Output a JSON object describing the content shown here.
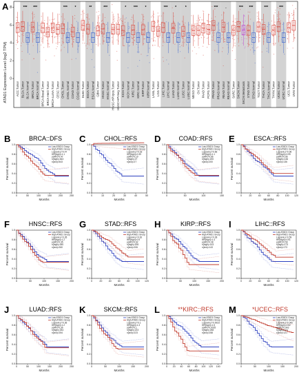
{
  "colors": {
    "tumor": "#d9534a",
    "normal": "#4a6fd0",
    "metastasis": "#c04ad0",
    "high": "#c0392b",
    "low": "#2b3fbf",
    "ci": "#cfa0a0",
    "shade": "#d3d3d3"
  },
  "panel_a": {
    "label": "A",
    "y_axis_label": "ATAD1 Expression Level (log2 TPM)",
    "y_ticks": [
      "0",
      "2",
      "4",
      "6",
      "8"
    ],
    "categories": [
      "ACC.Tumor",
      "BLCA.Tumor",
      "BLCA.Normal",
      "BRCA.Tumor",
      "BRCA.Normal",
      "BRCA-Basal.Tumor",
      "BRCA-Her2.Tumor",
      "BRCA-LumA.Tumor",
      "CESC.Tumor",
      "CHOL.Tumor",
      "CHOL.Normal",
      "COAD.Tumor",
      "COAD.Normal",
      "DLBC.Tumor",
      "ESCA.Tumor",
      "ESCA.Normal",
      "GBM.Tumor",
      "HNSC.Tumor",
      "HNSC.Normal",
      "HNSC-HPVpos.Tumor",
      "HNSC-HPVneg.Tumor",
      "KICH.Tumor",
      "KICH.Normal",
      "KIRC.Tumor",
      "KIRC.Normal",
      "KIRP.Tumor",
      "KIRP.Normal",
      "LAML.Tumor",
      "LGG.Tumor",
      "LIHC.Tumor",
      "LIHC.Normal",
      "LUAD.Tumor",
      "LUAD.Normal",
      "LUSC.Tumor",
      "LUSC.Normal",
      "MESO.Tumor",
      "OV.Tumor",
      "PAAD.Tumor",
      "PCPG.Tumor",
      "PRAD.Tumor",
      "PRAD.Normal",
      "READ.Tumor",
      "READ.Normal",
      "SARC.Tumor",
      "SKCM.Tumor",
      "SKCM.Metastasis",
      "STAD.Tumor",
      "STAD.Normal",
      "TGCT.Tumor",
      "THCA.Tumor",
      "THCA.Normal",
      "THYM.Tumor",
      "UCEC.Tumor",
      "UCEC.Normal",
      "UCS.Tumor",
      "UVM.Tumor"
    ],
    "shaded_pairs": [
      [
        1,
        2
      ],
      [
        3,
        4
      ],
      [
        9,
        10
      ],
      [
        11,
        12
      ],
      [
        14,
        15
      ],
      [
        17,
        18
      ],
      [
        21,
        22
      ],
      [
        23,
        24
      ],
      [
        25,
        26
      ],
      [
        29,
        30
      ],
      [
        31,
        32
      ],
      [
        33,
        34
      ],
      [
        39,
        40
      ],
      [
        41,
        42
      ],
      [
        44,
        45
      ],
      [
        46,
        47
      ],
      [
        49,
        50
      ],
      [
        52,
        53
      ]
    ],
    "significance": [
      {
        "index": 2,
        "label": "***"
      },
      {
        "index": 4,
        "label": "***"
      },
      {
        "index": 10,
        "label": "***"
      },
      {
        "index": 12,
        "label": "*"
      },
      {
        "index": 15,
        "label": "**"
      },
      {
        "index": 18,
        "label": "***"
      },
      {
        "index": 22,
        "label": "*"
      },
      {
        "index": 24,
        "label": "***"
      },
      {
        "index": 26,
        "label": "*"
      },
      {
        "index": 30,
        "label": "***"
      },
      {
        "index": 32,
        "label": "*"
      },
      {
        "index": 34,
        "label": "*"
      },
      {
        "index": 40,
        "label": "***"
      },
      {
        "index": 42,
        "label": "."
      },
      {
        "index": 45,
        "label": "***"
      },
      {
        "index": 47,
        "label": "***"
      },
      {
        "index": 50,
        "label": "***"
      },
      {
        "index": 53,
        "label": "***"
      }
    ]
  },
  "km_common": {
    "x_label": "Months",
    "y_label": "Percent survival",
    "y_ticks": [
      "0.0",
      "0.2",
      "0.4",
      "0.6",
      "0.8",
      "1.0"
    ],
    "legend_low": "Low ATAD1 Group",
    "legend_high": "High ATAD1 Group"
  },
  "km_panels": [
    {
      "label": "B",
      "title": "BRCA::DFS",
      "xmax": 250,
      "xticks": [
        "0",
        "50",
        "100",
        "150",
        "200",
        "250"
      ],
      "stats": [
        "Logrank p=0.47",
        "HR(high)=1.1",
        "p(HR)=0.47",
        "n(high)=543",
        "n(low)=543"
      ]
    },
    {
      "label": "C",
      "title": "CHOL::RFS",
      "xmax": 50,
      "xticks": [
        "0",
        "10",
        "20",
        "30",
        "40",
        "50"
      ],
      "stats": [
        "Logrank p=0.18",
        "HR(high)=0.39",
        "p(HR)=0.19",
        "n(high)=27",
        "n(low)=27"
      ]
    },
    {
      "label": "D",
      "title": "COAD::RFS",
      "xmax": 150,
      "xticks": [
        "0",
        "50",
        "100",
        "150"
      ],
      "stats": [
        "Logrank p=0.66",
        "HR(high)=1.1",
        "p(HR)=0.66",
        "n(high)=200",
        "n(low)=200"
      ]
    },
    {
      "label": "E",
      "title": "ESCA::RFS",
      "xmax": 120,
      "xticks": [
        "0",
        "20",
        "40",
        "60",
        "80",
        "100",
        "120"
      ],
      "stats": [
        "Logrank p=0.96",
        "HR(high)=0.99",
        "p(HR)=0.96",
        "n(high)=136",
        "n(low)=136"
      ]
    },
    {
      "label": "F",
      "title": "HNSC::RFS",
      "xmax": 200,
      "xticks": [
        "0",
        "50",
        "100",
        "150",
        "200"
      ],
      "stats": [
        "Logrank p=0.35",
        "HR(high)=1.2",
        "p(HR)=0.35",
        "n(high)=260",
        "n(low)=260"
      ]
    },
    {
      "label": "G",
      "title": "STAD::RFS",
      "xmax": 120,
      "xticks": [
        "0",
        "20",
        "40",
        "60",
        "80",
        "100",
        "120"
      ],
      "stats": [
        "Logrank p=0.62",
        "HR(high)=0.9",
        "p(HR)=0.62",
        "n(high)=206",
        "n(low)=206"
      ]
    },
    {
      "label": "H",
      "title": "KIRP::RFS",
      "xmax": 200,
      "xticks": [
        "0",
        "50",
        "100",
        "150",
        "200"
      ],
      "stats": [
        "Logrank p=0.28",
        "HR(high)=1.4",
        "p(HR)=0.28",
        "n(high)=143",
        "n(low)=143"
      ]
    },
    {
      "label": "I",
      "title": "LIHC::RFS",
      "xmax": 120,
      "xticks": [
        "0",
        "20",
        "40",
        "60",
        "80",
        "100",
        "120"
      ],
      "stats": [
        "Logrank p=0.59",
        "HR(high)=0.91",
        "p(HR)=0.59",
        "n(high)=173",
        "n(low)=173"
      ]
    },
    {
      "label": "J",
      "title": "LUAD::RFS",
      "xmax": 250,
      "xticks": [
        "0",
        "50",
        "100",
        "150",
        "200",
        "250"
      ],
      "stats": [
        "Logrank p=0.36",
        "HR(high)=1.2",
        "p(HR)=0.36",
        "n(high)=254",
        "n(low)=254"
      ]
    },
    {
      "label": "K",
      "title": "SKCM::RFS",
      "xmax": 200,
      "xticks": [
        "0",
        "50",
        "100",
        "150",
        "200"
      ],
      "stats": [
        "Logrank p=0.1",
        "HR(high)=1.3",
        "p(HR)=0.1",
        "n(high)=223",
        "n(low)=223"
      ]
    },
    {
      "label": "L",
      "title": "KIRC::RFS",
      "prefix": "**",
      "xmax": 150,
      "xticks": [
        "0",
        "20",
        "40",
        "60",
        "80",
        "100",
        "120",
        "140"
      ],
      "stats": [
        "Logrank p=0.0023",
        "HR(high)=1.5",
        "p(HR)=0.0025",
        "n(high)=258",
        "n(low)=258"
      ]
    },
    {
      "label": "M",
      "title": "UCEC::RFS",
      "prefix": "*",
      "xmax": 200,
      "xticks": [
        "0",
        "50",
        "100",
        "150",
        "200"
      ],
      "stats": [
        "Logrank p=0.042",
        "HR(high)=0.62",
        "p(HR)=0.043",
        "n(high)=121",
        "n(low)=121"
      ]
    }
  ]
}
